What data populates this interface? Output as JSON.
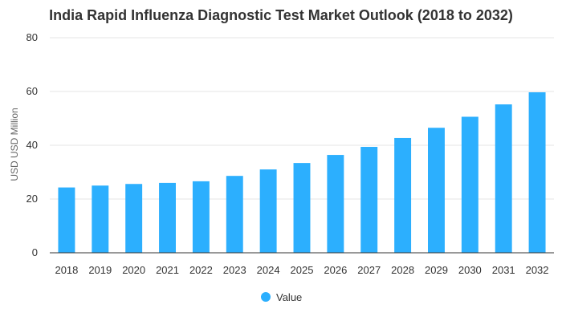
{
  "chart_data": {
    "type": "bar",
    "title": "India Rapid Influenza Diagnostic Test Market Outlook (2018 to 2032)",
    "ylabel": "USD USD Million",
    "xlabel": "",
    "categories": [
      "2018",
      "2019",
      "2020",
      "2021",
      "2022",
      "2023",
      "2024",
      "2025",
      "2026",
      "2027",
      "2028",
      "2029",
      "2030",
      "2031",
      "2032"
    ],
    "series": [
      {
        "name": "Value",
        "color": "#2caffe",
        "values": [
          24.3,
          25.0,
          25.6,
          26.0,
          26.6,
          28.6,
          31.0,
          33.4,
          36.4,
          39.4,
          42.7,
          46.5,
          50.6,
          55.2,
          59.7
        ]
      }
    ],
    "ylim": [
      0,
      80
    ],
    "yticks": [
      "0",
      "20",
      "40",
      "60",
      "80"
    ],
    "grid": true,
    "legend_position": "bottom-center"
  }
}
